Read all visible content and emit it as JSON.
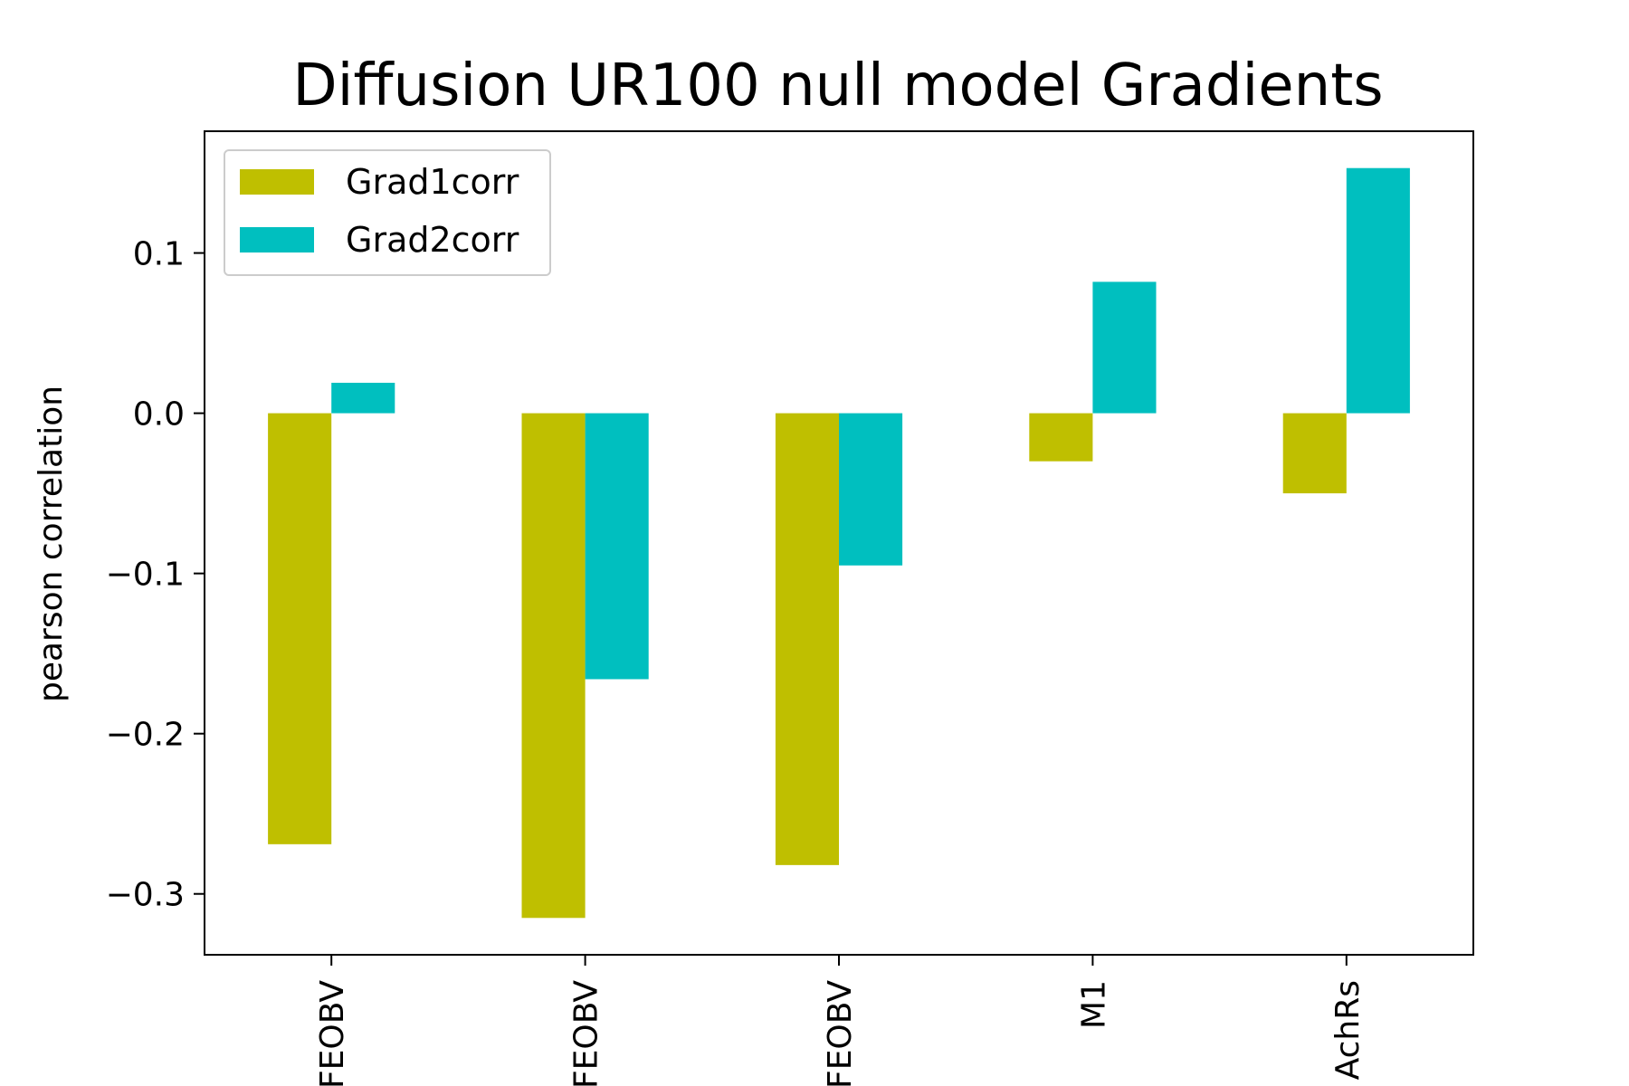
{
  "chart_data": {
    "type": "bar",
    "title": "Diffusion UR100 null model Gradients",
    "xlabel": "",
    "ylabel": "pearson correlation",
    "categories": [
      "FEOBV",
      "FEOBV",
      "FEOBV",
      "M1",
      "AchRs"
    ],
    "series": [
      {
        "name": "Grad1corr",
        "color": "#bfbf00",
        "values": [
          -0.269,
          -0.315,
          -0.282,
          -0.03,
          -0.05
        ]
      },
      {
        "name": "Grad2corr",
        "color": "#00bfbf",
        "values": [
          0.019,
          -0.166,
          -0.095,
          0.082,
          0.153
        ]
      }
    ],
    "ylim": [
      -0.338,
      0.176
    ],
    "yticks": [
      -0.3,
      -0.2,
      -0.1,
      0.0,
      0.1
    ],
    "ytick_labels": [
      "−0.3",
      "−0.2",
      "−0.1",
      "0.0",
      "0.1"
    ],
    "legend_position": "top-left",
    "grid": false
  }
}
